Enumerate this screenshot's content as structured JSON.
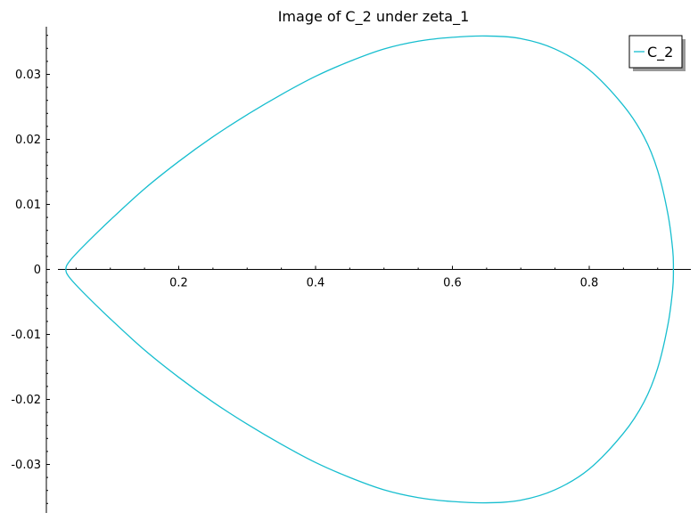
{
  "chart_data": {
    "type": "line",
    "title": "Image of C_2 under zeta_1",
    "xlabel": "",
    "ylabel": "",
    "xlim": [
      0.0,
      0.935
    ],
    "ylim": [
      -0.037,
      0.037
    ],
    "x_ticks": [
      {
        "value": 0.2,
        "label": "0.2"
      },
      {
        "value": 0.4,
        "label": "0.4"
      },
      {
        "value": 0.6,
        "label": "0.6"
      },
      {
        "value": 0.8,
        "label": "0.8"
      }
    ],
    "y_ticks": [
      {
        "value": 0.03,
        "label": "0.03"
      },
      {
        "value": 0.02,
        "label": "0.02"
      },
      {
        "value": 0.01,
        "label": "0.01"
      },
      {
        "value": 0.0,
        "label": "0"
      },
      {
        "value": -0.01,
        "label": "-0.01"
      },
      {
        "value": -0.02,
        "label": "-0.02"
      },
      {
        "value": -0.03,
        "label": "-0.03"
      }
    ],
    "grid": false,
    "legend": {
      "position": "top-right"
    },
    "series": [
      {
        "name": "C_2",
        "color": "#17becf",
        "closed": true,
        "points": [
          [
            0.035,
            0.0
          ],
          [
            0.04,
            0.0012
          ],
          [
            0.06,
            0.0035
          ],
          [
            0.1,
            0.0076
          ],
          [
            0.15,
            0.0124
          ],
          [
            0.2,
            0.0166
          ],
          [
            0.25,
            0.0204
          ],
          [
            0.3,
            0.0238
          ],
          [
            0.35,
            0.0269
          ],
          [
            0.4,
            0.0297
          ],
          [
            0.45,
            0.032
          ],
          [
            0.5,
            0.0339
          ],
          [
            0.55,
            0.0351
          ],
          [
            0.6,
            0.0357
          ],
          [
            0.65,
            0.0359
          ],
          [
            0.7,
            0.0355
          ],
          [
            0.75,
            0.0339
          ],
          [
            0.8,
            0.0307
          ],
          [
            0.85,
            0.0252
          ],
          [
            0.88,
            0.0204
          ],
          [
            0.9,
            0.0152
          ],
          [
            0.915,
            0.0085
          ],
          [
            0.922,
            0.003
          ],
          [
            0.923,
            0.0
          ],
          [
            0.922,
            -0.003
          ],
          [
            0.915,
            -0.0085
          ],
          [
            0.9,
            -0.0152
          ],
          [
            0.88,
            -0.0204
          ],
          [
            0.85,
            -0.0252
          ],
          [
            0.8,
            -0.0307
          ],
          [
            0.75,
            -0.0339
          ],
          [
            0.7,
            -0.0355
          ],
          [
            0.65,
            -0.0359
          ],
          [
            0.6,
            -0.0357
          ],
          [
            0.55,
            -0.0351
          ],
          [
            0.5,
            -0.0339
          ],
          [
            0.45,
            -0.032
          ],
          [
            0.4,
            -0.0297
          ],
          [
            0.35,
            -0.0269
          ],
          [
            0.3,
            -0.0238
          ],
          [
            0.25,
            -0.0204
          ],
          [
            0.2,
            -0.0166
          ],
          [
            0.15,
            -0.0124
          ],
          [
            0.1,
            -0.0076
          ],
          [
            0.06,
            -0.0035
          ],
          [
            0.04,
            -0.0012
          ]
        ]
      }
    ]
  }
}
